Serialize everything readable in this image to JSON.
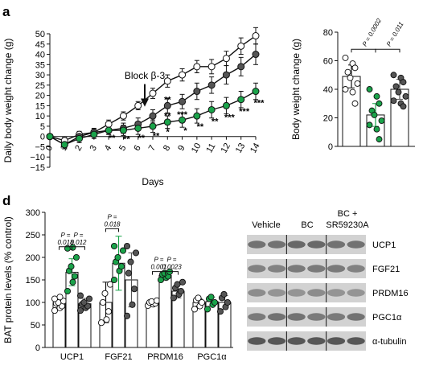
{
  "colors": {
    "vehicle": "#ffffff",
    "bc": "#1aa34a",
    "bc_sr": "#555555",
    "axis": "#111111",
    "grid": "#bfbfbf"
  },
  "panels": {
    "a": "a",
    "d": "d"
  },
  "chart_data": [
    {
      "id": "line",
      "type": "line",
      "xlabel": "Days",
      "ylabel": "Daily body weight change (g)",
      "x": [
        0,
        1,
        2,
        3,
        4,
        5,
        6,
        7,
        8,
        9,
        10,
        11,
        12,
        13,
        14
      ],
      "ylim": [
        -15,
        50
      ],
      "yticks": [
        -15,
        -10,
        -5,
        0,
        5,
        10,
        15,
        20,
        25,
        30,
        35,
        40,
        45,
        50
      ],
      "ytick_labels": [
        "−15",
        "−10",
        "−5",
        "0",
        "5",
        "10",
        "15",
        "20",
        "25",
        "30",
        "35",
        "40",
        "45",
        "50"
      ],
      "annotation": {
        "text": "Block β-3",
        "x": 7
      },
      "series": [
        {
          "key": "vehicle",
          "values": [
            0,
            -2,
            1,
            2,
            6,
            10,
            15,
            21,
            27,
            30,
            34,
            34,
            38,
            44,
            49
          ],
          "err": [
            1,
            1.5,
            1.5,
            1.5,
            2,
            2,
            2,
            2.5,
            3,
            3,
            3,
            3.5,
            3.5,
            4,
            4
          ]
        },
        {
          "key": "bc_sr",
          "values": [
            0,
            -4,
            0,
            2,
            3,
            4,
            6,
            10,
            15,
            17,
            22,
            25,
            30,
            34,
            40
          ],
          "err": [
            1,
            2,
            2,
            2,
            2,
            2.5,
            3,
            3,
            3.5,
            3.5,
            4,
            4,
            4.5,
            4.5,
            5
          ]
        },
        {
          "key": "bc",
          "values": [
            0,
            -4,
            -1,
            1,
            3,
            3,
            4,
            5,
            7,
            8,
            10,
            13,
            15,
            18,
            22
          ],
          "err": [
            1,
            2,
            2,
            2,
            2,
            2.5,
            3,
            3,
            3,
            3.5,
            3.5,
            4,
            4,
            4,
            4
          ]
        }
      ],
      "significance": [
        {
          "x": 4,
          "text": "**"
        },
        {
          "x": 5,
          "text": "**"
        },
        {
          "x": 6,
          "text": "**"
        },
        {
          "x": 7,
          "text": "**"
        },
        {
          "x": 7.8,
          "text": "*"
        },
        {
          "x": 8,
          "text": "**"
        },
        {
          "x": 8,
          "text": "**"
        },
        {
          "x": 9,
          "text": "*"
        },
        {
          "x": 9,
          "text": "***"
        },
        {
          "x": 10,
          "text": "**"
        },
        {
          "x": 11,
          "text": "**"
        },
        {
          "x": 12,
          "text": "***"
        },
        {
          "x": 13,
          "text": "***"
        },
        {
          "x": 14,
          "text": "***"
        }
      ]
    },
    {
      "id": "bw",
      "type": "bar",
      "ylabel": "Body weight change (g)",
      "ylim": [
        0,
        80
      ],
      "yticks": [
        0,
        20,
        40,
        60,
        80
      ],
      "bars": [
        {
          "key": "vehicle",
          "value": 49,
          "err": 8,
          "points": [
            62,
            58,
            55,
            52,
            48,
            44,
            40,
            38,
            30
          ]
        },
        {
          "key": "bc",
          "value": 22,
          "err": 8,
          "points": [
            40,
            35,
            30,
            25,
            22,
            18,
            15,
            12,
            5
          ]
        },
        {
          "key": "bc_sr",
          "value": 40,
          "err": 7,
          "points": [
            50,
            48,
            45,
            42,
            38,
            35,
            32,
            30,
            28
          ]
        }
      ],
      "pvalues": [
        {
          "from": 0,
          "to": 1,
          "text": "P = 0.0002"
        },
        {
          "from": 1,
          "to": 2,
          "text": "P = 0.011"
        }
      ]
    },
    {
      "id": "bat",
      "type": "bar",
      "ylabel": "BAT protein levels (% control)",
      "ylim": [
        0,
        300
      ],
      "yticks": [
        0,
        50,
        100,
        150,
        200,
        250,
        300
      ],
      "categories": [
        "UCP1",
        "FGF21",
        "PRDM16",
        "PGC1α"
      ],
      "groups": [
        {
          "category": "UCP1",
          "bars": [
            {
              "key": "vehicle",
              "value": 100,
              "err": 12,
              "points": [
                82,
                88,
                92,
                98,
                100,
                103,
                108,
                112
              ]
            },
            {
              "key": "bc",
              "value": 167,
              "err": 30,
              "points": [
                125,
                145,
                158,
                170,
                180,
                200,
                220,
                222
              ]
            },
            {
              "key": "bc_sr",
              "value": 97,
              "err": 12,
              "points": [
                82,
                88,
                92,
                96,
                100,
                108,
                115
              ]
            }
          ]
        },
        {
          "category": "FGF21",
          "bars": [
            {
              "key": "vehicle",
              "value": 100,
              "err": 45,
              "points": [
                55,
                62,
                80,
                100,
                120,
                140
              ]
            },
            {
              "key": "bc",
              "value": 187,
              "err": 60,
              "points": [
                150,
                170,
                180,
                190,
                200,
                215,
                225
              ]
            },
            {
              "key": "bc_sr",
              "value": 150,
              "err": 60,
              "points": [
                70,
                95,
                130,
                165,
                190,
                210,
                225
              ]
            }
          ]
        },
        {
          "category": "PRDM16",
          "bars": [
            {
              "key": "vehicle",
              "value": 100,
              "err": 5,
              "points": [
                93,
                96,
                98,
                100,
                102,
                104
              ]
            },
            {
              "key": "bc",
              "value": 160,
              "err": 10,
              "points": [
                150,
                155,
                158,
                162,
                165,
                168
              ]
            },
            {
              "key": "bc_sr",
              "value": 125,
              "err": 15,
              "points": [
                110,
                118,
                125,
                132,
                140,
                145
              ]
            }
          ]
        },
        {
          "category": "PGC1α",
          "bars": [
            {
              "key": "vehicle",
              "value": 100,
              "err": 8,
              "points": [
                85,
                92,
                100,
                105,
                110
              ]
            },
            {
              "key": "bc",
              "value": 102,
              "err": 10,
              "points": [
                85,
                95,
                100,
                108,
                112
              ]
            },
            {
              "key": "bc_sr",
              "value": 100,
              "err": 15,
              "points": [
                80,
                90,
                100,
                110,
                118
              ]
            }
          ]
        }
      ],
      "pvalues": [
        {
          "cat": 0,
          "from": 0,
          "to": 1,
          "l1": "P =",
          "l2": "0.018",
          "level": 220
        },
        {
          "cat": 0,
          "from": 1,
          "to": 2,
          "l1": "P =",
          "l2": "0.012",
          "level": 220
        },
        {
          "cat": 1,
          "from": 0,
          "to": 1,
          "l1": "P =",
          "l2": "0.018",
          "level": 260
        },
        {
          "cat": 2,
          "from": 0,
          "to": 1,
          "l1": "P =",
          "l2": "0.001",
          "level": 165
        },
        {
          "cat": 2,
          "from": 1,
          "to": 2,
          "l1": "P =",
          "l2": "0.0023",
          "level": 165
        }
      ]
    }
  ],
  "western": {
    "lanes": [
      "Vehicle",
      "BC",
      "BC +",
      "SR59230A"
    ],
    "proteins": [
      "UCP1",
      "FGF21",
      "PRDM16",
      "PGC1α",
      "α-tubulin"
    ]
  }
}
